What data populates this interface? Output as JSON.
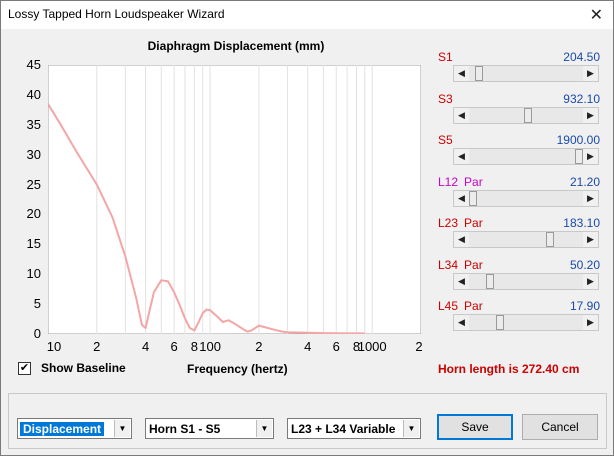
{
  "window": {
    "title": "Lossy Tapped Horn Loudspeaker Wizard",
    "close_glyph": "✕"
  },
  "chart": {
    "title": "Diaphragm Displacement (mm)"
  },
  "chart_data": {
    "type": "line",
    "title": "Diaphragm Displacement (mm)",
    "xlabel": "Frequency (hertz)",
    "ylabel": "",
    "xscale": "log",
    "xlim": [
      10,
      2000
    ],
    "ylim": [
      0,
      45
    ],
    "ytick_labels": [
      "45",
      "40",
      "35",
      "30",
      "25",
      "20",
      "15",
      "10",
      "5",
      "0"
    ],
    "xtick_labels": [
      "10",
      "2",
      "4",
      "6",
      "8",
      "100",
      "2",
      "4",
      "6",
      "8",
      "1000",
      "2"
    ],
    "grid": true,
    "series": [
      {
        "color": "#f4a6a6",
        "x": [
          10,
          12,
          15,
          18,
          20,
          25,
          30,
          35,
          38,
          40,
          42,
          45,
          50,
          55,
          60,
          65,
          70,
          75,
          80,
          85,
          90,
          95,
          100,
          110,
          120,
          130,
          140,
          150,
          160,
          170,
          180,
          200,
          220,
          250,
          280,
          300,
          350,
          400,
          500,
          600,
          700,
          800,
          900
        ],
        "y": [
          38.5,
          35.0,
          30.5,
          27.0,
          25.0,
          19.5,
          13.0,
          6.0,
          1.5,
          1.0,
          3.5,
          7.0,
          9.0,
          8.8,
          7.0,
          4.8,
          2.6,
          1.0,
          0.6,
          2.0,
          3.5,
          4.1,
          4.0,
          3.0,
          2.0,
          2.3,
          1.8,
          1.3,
          0.8,
          0.4,
          0.6,
          1.4,
          1.1,
          0.7,
          0.4,
          0.3,
          0.25,
          0.2,
          0.15,
          0.12,
          0.1,
          0.1,
          0.1
        ]
      }
    ]
  },
  "labels": {
    "show_baseline": "Show Baseline",
    "frequency": "Frequency (hertz)",
    "horn_length": "Horn length is 272.40 cm"
  },
  "sliders": [
    {
      "name": "S1",
      "par": "",
      "value": "204.50",
      "name_color": "#cc0000",
      "position": 0.08
    },
    {
      "name": "S3",
      "par": "",
      "value": "932.10",
      "name_color": "#cc0000",
      "position": 0.52
    },
    {
      "name": "S5",
      "par": "",
      "value": "1900.00",
      "name_color": "#cc0000",
      "position": 0.97
    },
    {
      "name": "L12",
      "par": "Par",
      "value": "21.20",
      "name_color": "#cc00cc",
      "position": 0.03
    },
    {
      "name": "L23",
      "par": "Par",
      "value": "183.10",
      "name_color": "#cc0000",
      "position": 0.71
    },
    {
      "name": "L34",
      "par": "Par",
      "value": "50.20",
      "name_color": "#cc0000",
      "position": 0.18
    },
    {
      "name": "L45",
      "par": "Par",
      "value": "17.90",
      "name_color": "#cc0000",
      "position": 0.27
    }
  ],
  "bottom": {
    "select_plot": "Displacement",
    "select_horn": "Horn S1 - S5",
    "select_mode": "L23 + L34 Variable",
    "save": "Save",
    "cancel": "Cancel",
    "dropdown_glyph": "▼",
    "checkbox_glyph": "✔"
  }
}
